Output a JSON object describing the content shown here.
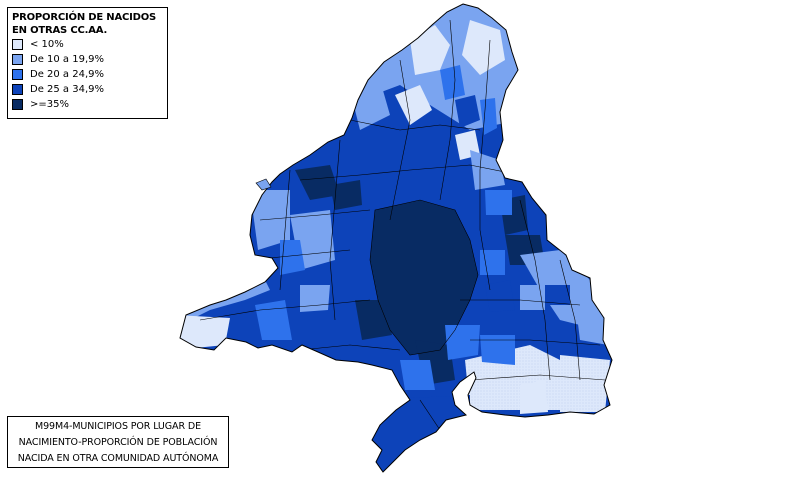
{
  "legend": {
    "title": "PROPORCIÓN DE NACIDOS EN OTRAS CC.AA.",
    "classes": [
      {
        "label": "< 10%",
        "color": "#dde8fb"
      },
      {
        "label": "De 10 a 19,9%",
        "color": "#7aa4f0"
      },
      {
        "label": "De 20 a 24,9%",
        "color": "#2e72ec"
      },
      {
        "label": "De 25 a 34,9%",
        "color": "#0d43b9"
      },
      {
        "label": ">=35%",
        "color": "#082b63"
      }
    ]
  },
  "caption": {
    "line1": "M99M4-MUNICIPIOS POR LUGAR DE",
    "line2": "NACIMIENTO-PROPORCIÓN DE POBLACIÓN",
    "line3": "NACIDA EN OTRA COMUNIDAD AUTÓNOMA"
  }
}
